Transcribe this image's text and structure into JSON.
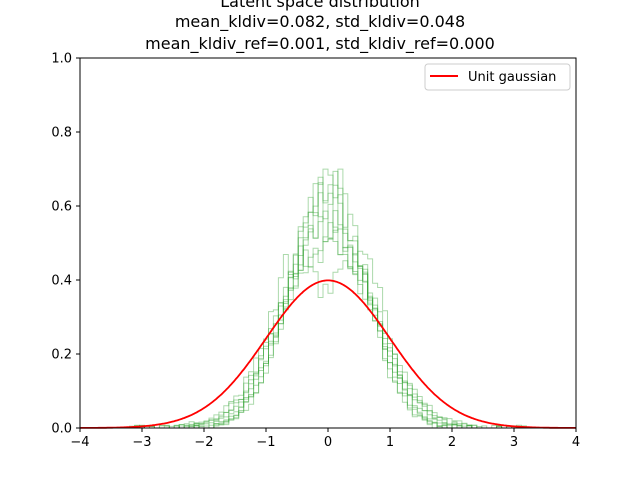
{
  "chart_data": {
    "type": "line",
    "title_lines": [
      "Latent space distribution",
      "mean_kldiv=0.082, std_kldiv=0.048",
      "mean_kldiv_ref=0.001, std_kldiv_ref=0.000"
    ],
    "xlim": [
      -4,
      4
    ],
    "ylim": [
      0,
      1.0
    ],
    "x_ticks": [
      -4,
      -3,
      -2,
      -1,
      0,
      1,
      2,
      3,
      4
    ],
    "x_tick_labels": [
      "−4",
      "−3",
      "−2",
      "−1",
      "0",
      "1",
      "2",
      "3",
      "4"
    ],
    "y_ticks": [
      0,
      0.2,
      0.4,
      0.6,
      0.8,
      1.0
    ],
    "y_tick_labels": [
      "0.0",
      "0.2",
      "0.4",
      "0.6",
      "0.8",
      "1.0"
    ],
    "grid": false,
    "legend": {
      "position": "top-right",
      "entries": [
        {
          "label": "Unit gaussian",
          "color": "#ff0000"
        }
      ]
    },
    "reference_curve": {
      "name": "Unit gaussian",
      "kind": "standard normal pdf",
      "mean": 0,
      "std": 1,
      "peak": 0.399,
      "color": "#ff0000"
    },
    "histogram_style": {
      "color": "#2ca02c",
      "alpha": 0.4,
      "histtype": "step"
    },
    "histograms": [
      {
        "sigma": 0.58,
        "peak": 0.68
      },
      {
        "sigma": 0.62,
        "peak": 0.63
      },
      {
        "sigma": 0.66,
        "peak": 0.6
      },
      {
        "sigma": 0.72,
        "peak": 0.55
      },
      {
        "sigma": 0.78,
        "peak": 0.51
      },
      {
        "sigma": 0.74,
        "peak": 0.53
      },
      {
        "sigma": 0.69,
        "peak": 0.57
      },
      {
        "sigma": 0.61,
        "peak": 0.65
      }
    ],
    "bimodal_histogram": {
      "centers": [
        -0.55,
        0.55
      ],
      "sigma": 0.42,
      "peak": 0.44
    }
  }
}
